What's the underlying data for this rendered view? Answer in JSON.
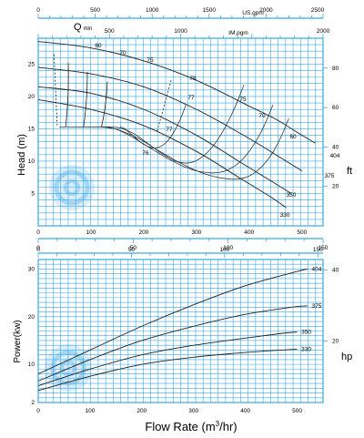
{
  "chart_data": [
    {
      "type": "line",
      "id": "head",
      "ylabel": "Head (m)",
      "y2label": "ft",
      "top_axis_usgpm": {
        "label": "US.gpm",
        "ticks": [
          "0",
          "500",
          "1000",
          "1500",
          "2000",
          "2500"
        ],
        "range": [
          0,
          2500
        ]
      },
      "top_axis_impgpm": {
        "label": "IM.pgm",
        "ticks": [
          "500",
          "1000",
          "2000"
        ],
        "range": [
          0,
          2000
        ]
      },
      "bottom_axis": {
        "ticks": [
          "0",
          "100",
          "200",
          "300",
          "400",
          "500"
        ],
        "range": [
          0,
          500
        ]
      },
      "bottom_axis_2": {
        "ticks": [
          "0",
          "50",
          "100",
          "150"
        ],
        "range": [
          0,
          150
        ]
      },
      "ylim": [
        0,
        29
      ],
      "y_ticks": [
        "5",
        "10",
        "15",
        "20",
        "25"
      ],
      "y2_ticks": [
        "20",
        "40",
        "60",
        "80"
      ],
      "qmin_label": "Q",
      "qmin_sub": "min",
      "series": [
        {
          "name": "404",
          "x": [
            0,
            100,
            200,
            300,
            400,
            450,
            500,
            525
          ],
          "y": [
            28.5,
            27.5,
            25.5,
            22.5,
            18.5,
            16.5,
            14.0,
            12.8
          ]
        },
        {
          "name": "375",
          "x": [
            0,
            100,
            200,
            300,
            400,
            460,
            500
          ],
          "y": [
            24.5,
            23.5,
            21.5,
            18.0,
            13.5,
            10.5,
            8.5
          ]
        },
        {
          "name": "350",
          "x": [
            0,
            100,
            200,
            300,
            380,
            440,
            480
          ],
          "y": [
            21.5,
            20.5,
            18.0,
            14.0,
            10.0,
            7.0,
            5.0
          ]
        },
        {
          "name": "330",
          "x": [
            0,
            100,
            200,
            300,
            380,
            440,
            470
          ],
          "y": [
            19.5,
            18.0,
            15.5,
            11.5,
            7.5,
            4.5,
            2.8
          ]
        }
      ],
      "efficiency": [
        {
          "label": "60",
          "x": [
            40,
            55,
            70,
            85,
            100,
            115,
            130,
            145,
            160,
            175,
            190,
            205,
            220,
            235,
            250,
            265,
            280,
            295,
            310,
            325,
            340,
            355,
            370,
            385,
            400,
            415,
            430,
            445,
            460,
            475
          ],
          "y": [
            15.3,
            15.3,
            15.3,
            15.3,
            15.3,
            15.3,
            15.2,
            15.0,
            14.6,
            14.1,
            13.5,
            12.8,
            12.0,
            11.3,
            10.6,
            9.9,
            9.3,
            8.7,
            8.2,
            7.8,
            7.5,
            7.3,
            7.2,
            7.3,
            7.7,
            8.5,
            9.7,
            11.4,
            13.7,
            16.6
          ]
        },
        {
          "label": "70",
          "x": [
            65,
            75,
            85,
            95,
            105,
            115,
            125,
            135,
            145,
            155,
            165,
            175,
            185,
            195,
            205,
            215,
            225,
            235,
            245,
            255,
            265,
            275,
            285,
            295,
            305,
            315,
            325,
            335,
            345,
            355,
            365,
            375,
            385,
            395,
            405,
            415,
            425,
            435,
            445
          ],
          "y": [
            15.3,
            15.3,
            15.3,
            15.3,
            15.3,
            15.3,
            15.3,
            15.2,
            15.0,
            14.7,
            14.3,
            13.9,
            13.4,
            12.9,
            12.4,
            11.9,
            11.4,
            10.9,
            10.4,
            10.0,
            9.6,
            9.2,
            8.9,
            8.6,
            8.4,
            8.3,
            8.2,
            8.2,
            8.3,
            8.5,
            8.9,
            9.4,
            10.1,
            11.0,
            12.1,
            13.4,
            14.9,
            16.7,
            18.7
          ]
        },
        {
          "label": "75",
          "x": [
            120,
            130,
            140,
            150,
            160,
            170,
            180,
            190,
            200,
            210,
            220,
            230,
            240,
            250,
            260,
            270,
            280,
            290,
            300,
            310,
            320,
            330,
            340,
            350,
            360,
            370,
            380,
            390
          ],
          "y": [
            15.3,
            15.3,
            15.3,
            15.2,
            15.0,
            14.7,
            14.3,
            13.8,
            13.2,
            12.6,
            12.0,
            11.4,
            10.9,
            10.4,
            10.0,
            9.8,
            9.7,
            9.8,
            10.1,
            10.6,
            11.3,
            12.2,
            13.3,
            14.6,
            16.1,
            17.8,
            19.7,
            21.8
          ]
        },
        {
          "label": "76",
          "x": [
            155,
            162,
            170,
            180,
            190,
            200,
            210,
            220,
            230,
            240,
            250,
            260,
            270,
            280
          ],
          "y": [
            15.3,
            15.1,
            14.6,
            13.9,
            13.2,
            12.6,
            12.2,
            12.0,
            12.2,
            12.7,
            13.6,
            14.9,
            16.6,
            18.7
          ]
        }
      ],
      "efficiency_labels": [
        "60",
        "70",
        "75",
        "78",
        "77",
        "77",
        "76",
        "75",
        "70",
        "60"
      ],
      "diameter_labels": [
        "404",
        "375",
        "350",
        "330"
      ]
    },
    {
      "type": "line",
      "id": "power",
      "ylabel": "Power(kw)",
      "y2label": "hp",
      "xlabel": "Flow Rate (m",
      "xlabel_sup": "3",
      "xlabel_tail": "/hr)",
      "x_ticks": [
        "0",
        "100",
        "200",
        "300",
        "400",
        "500"
      ],
      "x_range": [
        0,
        550
      ],
      "top_axis": {
        "ticks": [
          "0",
          "50",
          "100",
          "150"
        ],
        "range": [
          0,
          150
        ]
      },
      "ylim": [
        2,
        32
      ],
      "y_ticks": [
        "2",
        "10",
        "20",
        "30"
      ],
      "y2_ticks": [
        "20",
        "40"
      ],
      "series": [
        {
          "name": "404",
          "x": [
            0,
            100,
            200,
            300,
            400,
            500,
            520
          ],
          "y": [
            8,
            13,
            18,
            22.5,
            26.5,
            29.5,
            30
          ]
        },
        {
          "name": "375",
          "x": [
            0,
            100,
            200,
            300,
            400,
            490,
            520
          ],
          "y": [
            6.5,
            11,
            15,
            18,
            20.5,
            22,
            22.3
          ]
        },
        {
          "name": "350",
          "x": [
            0,
            100,
            200,
            300,
            400,
            470,
            500
          ],
          "y": [
            5.5,
            9,
            12,
            14,
            15.5,
            16.5,
            16.8
          ]
        },
        {
          "name": "330",
          "x": [
            0,
            100,
            200,
            300,
            400,
            470,
            500
          ],
          "y": [
            4.5,
            7.5,
            10,
            11.5,
            12.5,
            13,
            13.2
          ]
        }
      ]
    }
  ]
}
